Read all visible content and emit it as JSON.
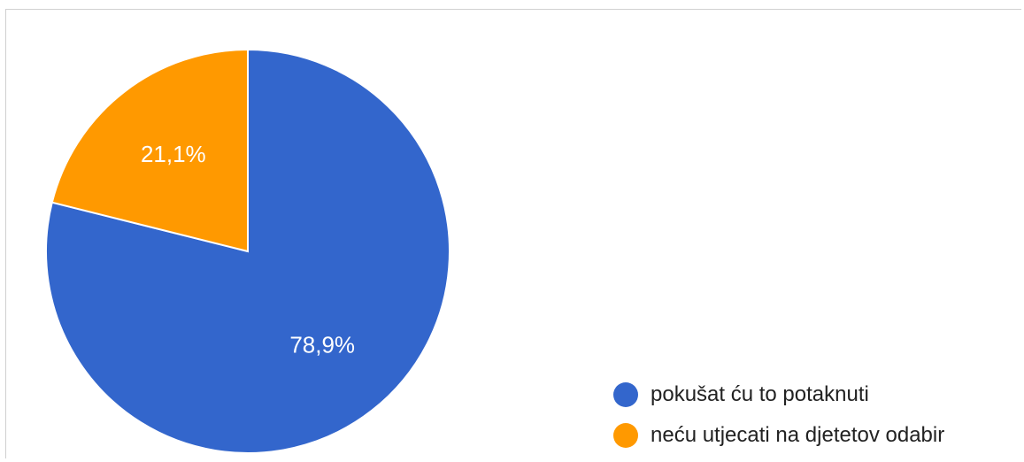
{
  "chart_data": {
    "type": "pie",
    "title": "",
    "slices": [
      {
        "label": "pokušat ću to potaknuti",
        "value": 78.9,
        "value_label": "78,9%",
        "color": "#3366cc"
      },
      {
        "label": "neću utjecati na djetetov odabir",
        "value": 21.1,
        "value_label": "21,1%",
        "color": "#ff9900"
      }
    ],
    "legend_position": "bottom-right"
  },
  "legend": {
    "items": [
      {
        "label": "pokušat ću to potaknuti",
        "color": "#3366cc"
      },
      {
        "label": "neću utjecati na djetetov odabir",
        "color": "#ff9900"
      }
    ]
  }
}
